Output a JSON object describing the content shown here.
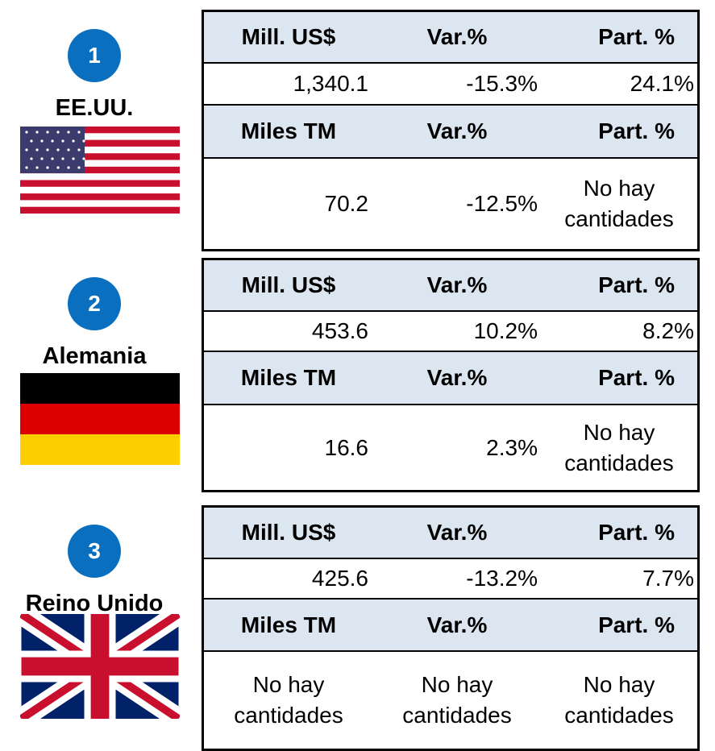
{
  "countries": [
    {
      "rank": "1",
      "name": "EE.UU.",
      "header1": [
        "Mill. US$",
        "Var.%",
        "Part. %"
      ],
      "row1": [
        "1,340.1",
        "-15.3%",
        "24.1%"
      ],
      "header2": [
        "Miles TM",
        "Var.%",
        "Part. %"
      ],
      "row2": [
        "70.2",
        "-12.5%",
        "No hay cantidades"
      ]
    },
    {
      "rank": "2",
      "name": "Alemania",
      "header1": [
        "Mill. US$",
        "Var.%",
        "Part. %"
      ],
      "row1": [
        "453.6",
        "10.2%",
        "8.2%"
      ],
      "header2": [
        "Miles TM",
        "Var.%",
        "Part. %"
      ],
      "row2": [
        "16.6",
        "2.3%",
        "No hay cantidades"
      ]
    },
    {
      "rank": "3",
      "name": "Reino Unido",
      "header1": [
        "Mill. US$",
        "Var.%",
        "Part. %"
      ],
      "row1": [
        "425.6",
        "-13.2%",
        "7.7%"
      ],
      "header2": [
        "Miles TM",
        "Var.%",
        "Part. %"
      ],
      "row2": [
        "No hay cantidades",
        "No hay cantidades",
        "No hay cantidades"
      ]
    }
  ]
}
